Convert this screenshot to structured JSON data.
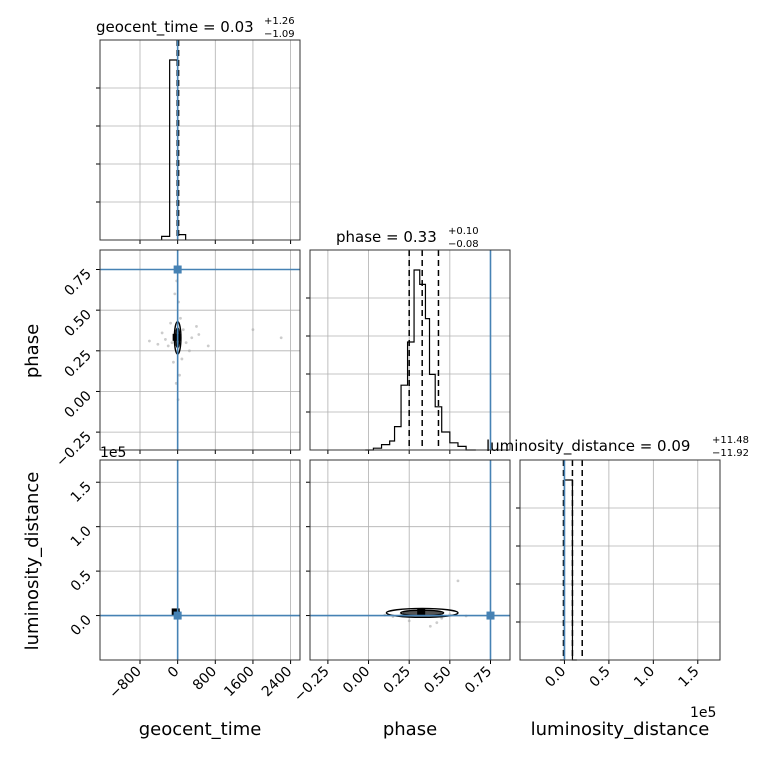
{
  "chart_data": {
    "type": "corner",
    "parameters": [
      "geocent_time",
      "phase",
      "luminosity_distance"
    ],
    "titles": [
      {
        "base": "geocent_time = 0.03",
        "plus": "+1.26",
        "minus": "−1.09"
      },
      {
        "base": "phase = 0.33",
        "plus": "+0.10",
        "minus": "−0.08"
      },
      {
        "base": "luminosity_distance = 0.09",
        "plus": "+11.48",
        "minus": "−11.92"
      }
    ],
    "axis_labels": {
      "x": [
        "geocent_time",
        "phase",
        "luminosity_distance"
      ],
      "y": [
        "phase",
        "luminosity_distance"
      ]
    },
    "ranges": {
      "geocent_time": [
        -1650,
        2600
      ],
      "phase": [
        -0.36,
        0.87
      ],
      "luminosity_distance": [
        -50000,
        175000
      ]
    },
    "ticks": {
      "geocent_time": {
        "values": [
          -800,
          0,
          800,
          1600,
          2400
        ],
        "labels": [
          "−800",
          "0",
          "800",
          "1600",
          "2400"
        ]
      },
      "phase": {
        "values": [
          -0.25,
          0.0,
          0.25,
          0.5,
          0.75
        ],
        "labels": [
          "−0.25",
          "0.00",
          "0.25",
          "0.50",
          "0.75"
        ]
      },
      "luminosity_distance": {
        "values": [
          0,
          50000,
          100000,
          150000
        ],
        "labels": [
          "0.0",
          "0.5",
          "1.0",
          "1.5"
        ]
      }
    },
    "offset_text": "1e5",
    "truths": {
      "geocent_time": 0,
      "phase": 0.75,
      "luminosity_distance": 0
    },
    "quantiles": {
      "geocent_time": [
        -10,
        3,
        20
      ],
      "phase": [
        0.25,
        0.33,
        0.43
      ],
      "luminosity_distance": [
        -1100,
        9000,
        20000
      ]
    },
    "histograms": {
      "geocent_time": {
        "bin_edges": [
          -340,
          -170,
          0,
          170
        ],
        "counts": [
          0.02,
          1.0,
          0.03
        ]
      },
      "phase": {
        "bin_edges": [
          -0.02,
          0.03,
          0.08,
          0.13,
          0.16,
          0.2,
          0.24,
          0.28,
          0.315,
          0.35,
          0.375,
          0.41,
          0.45,
          0.5,
          0.55,
          0.6,
          0.66
        ],
        "counts": [
          0.0,
          0.01,
          0.03,
          0.05,
          0.13,
          0.36,
          0.6,
          1.0,
          0.92,
          0.73,
          0.42,
          0.24,
          0.1,
          0.04,
          0.02,
          0.0
        ]
      },
      "luminosity_distance": {
        "bin_edges": [
          -5000,
          0,
          9000,
          14000
        ],
        "counts": [
          0.0,
          1.0,
          0.0
        ]
      }
    },
    "scatter": {
      "phase_vs_geocent_time": [
        [
          -120,
          0.3
        ],
        [
          -200,
          0.28
        ],
        [
          -260,
          0.32
        ],
        [
          -90,
          0.18
        ],
        [
          60,
          0.45
        ],
        [
          120,
          0.38
        ],
        [
          180,
          0.3
        ],
        [
          300,
          0.33
        ],
        [
          450,
          0.35
        ],
        [
          -420,
          0.29
        ],
        [
          -330,
          0.36
        ],
        [
          40,
          0.1
        ],
        [
          -30,
          0.05
        ],
        [
          20,
          0.55
        ],
        [
          -60,
          0.6
        ],
        [
          90,
          0.2
        ],
        [
          650,
          0.28
        ],
        [
          1600,
          0.38
        ],
        [
          2200,
          0.33
        ],
        [
          -600,
          0.31
        ],
        [
          250,
          0.25
        ],
        [
          -150,
          0.42
        ],
        [
          10,
          -0.05
        ],
        [
          -20,
          0.68
        ],
        [
          400,
          0.4
        ]
      ],
      "luminosity_distance_vs_phase": [
        [
          0.15,
          -1000
        ],
        [
          0.2,
          2000
        ],
        [
          0.45,
          -3000
        ],
        [
          0.5,
          1000
        ],
        [
          0.55,
          39000
        ],
        [
          0.38,
          -12000
        ],
        [
          0.42,
          -8000
        ],
        [
          0.1,
          500
        ],
        [
          0.6,
          -500
        ],
        [
          0.25,
          -6000
        ]
      ]
    },
    "contours": {
      "phase_vs_geocent_time": {
        "center": [
          0,
          0.33
        ],
        "half_width": [
          70,
          0.1
        ]
      },
      "luminosity_distance_vs_phase": {
        "center": [
          0.33,
          3000
        ],
        "half_width": [
          0.22,
          5000
        ]
      },
      "luminosity_distance_vs_geocent_time": {
        "center": [
          -20,
          3500
        ],
        "half_width": [
          60,
          2500
        ]
      }
    },
    "grid": true,
    "colors": {
      "truth": "#4682b4",
      "hist": "#000000",
      "grid": "#b0b0b0",
      "scatter": "#aaaaaa"
    }
  }
}
